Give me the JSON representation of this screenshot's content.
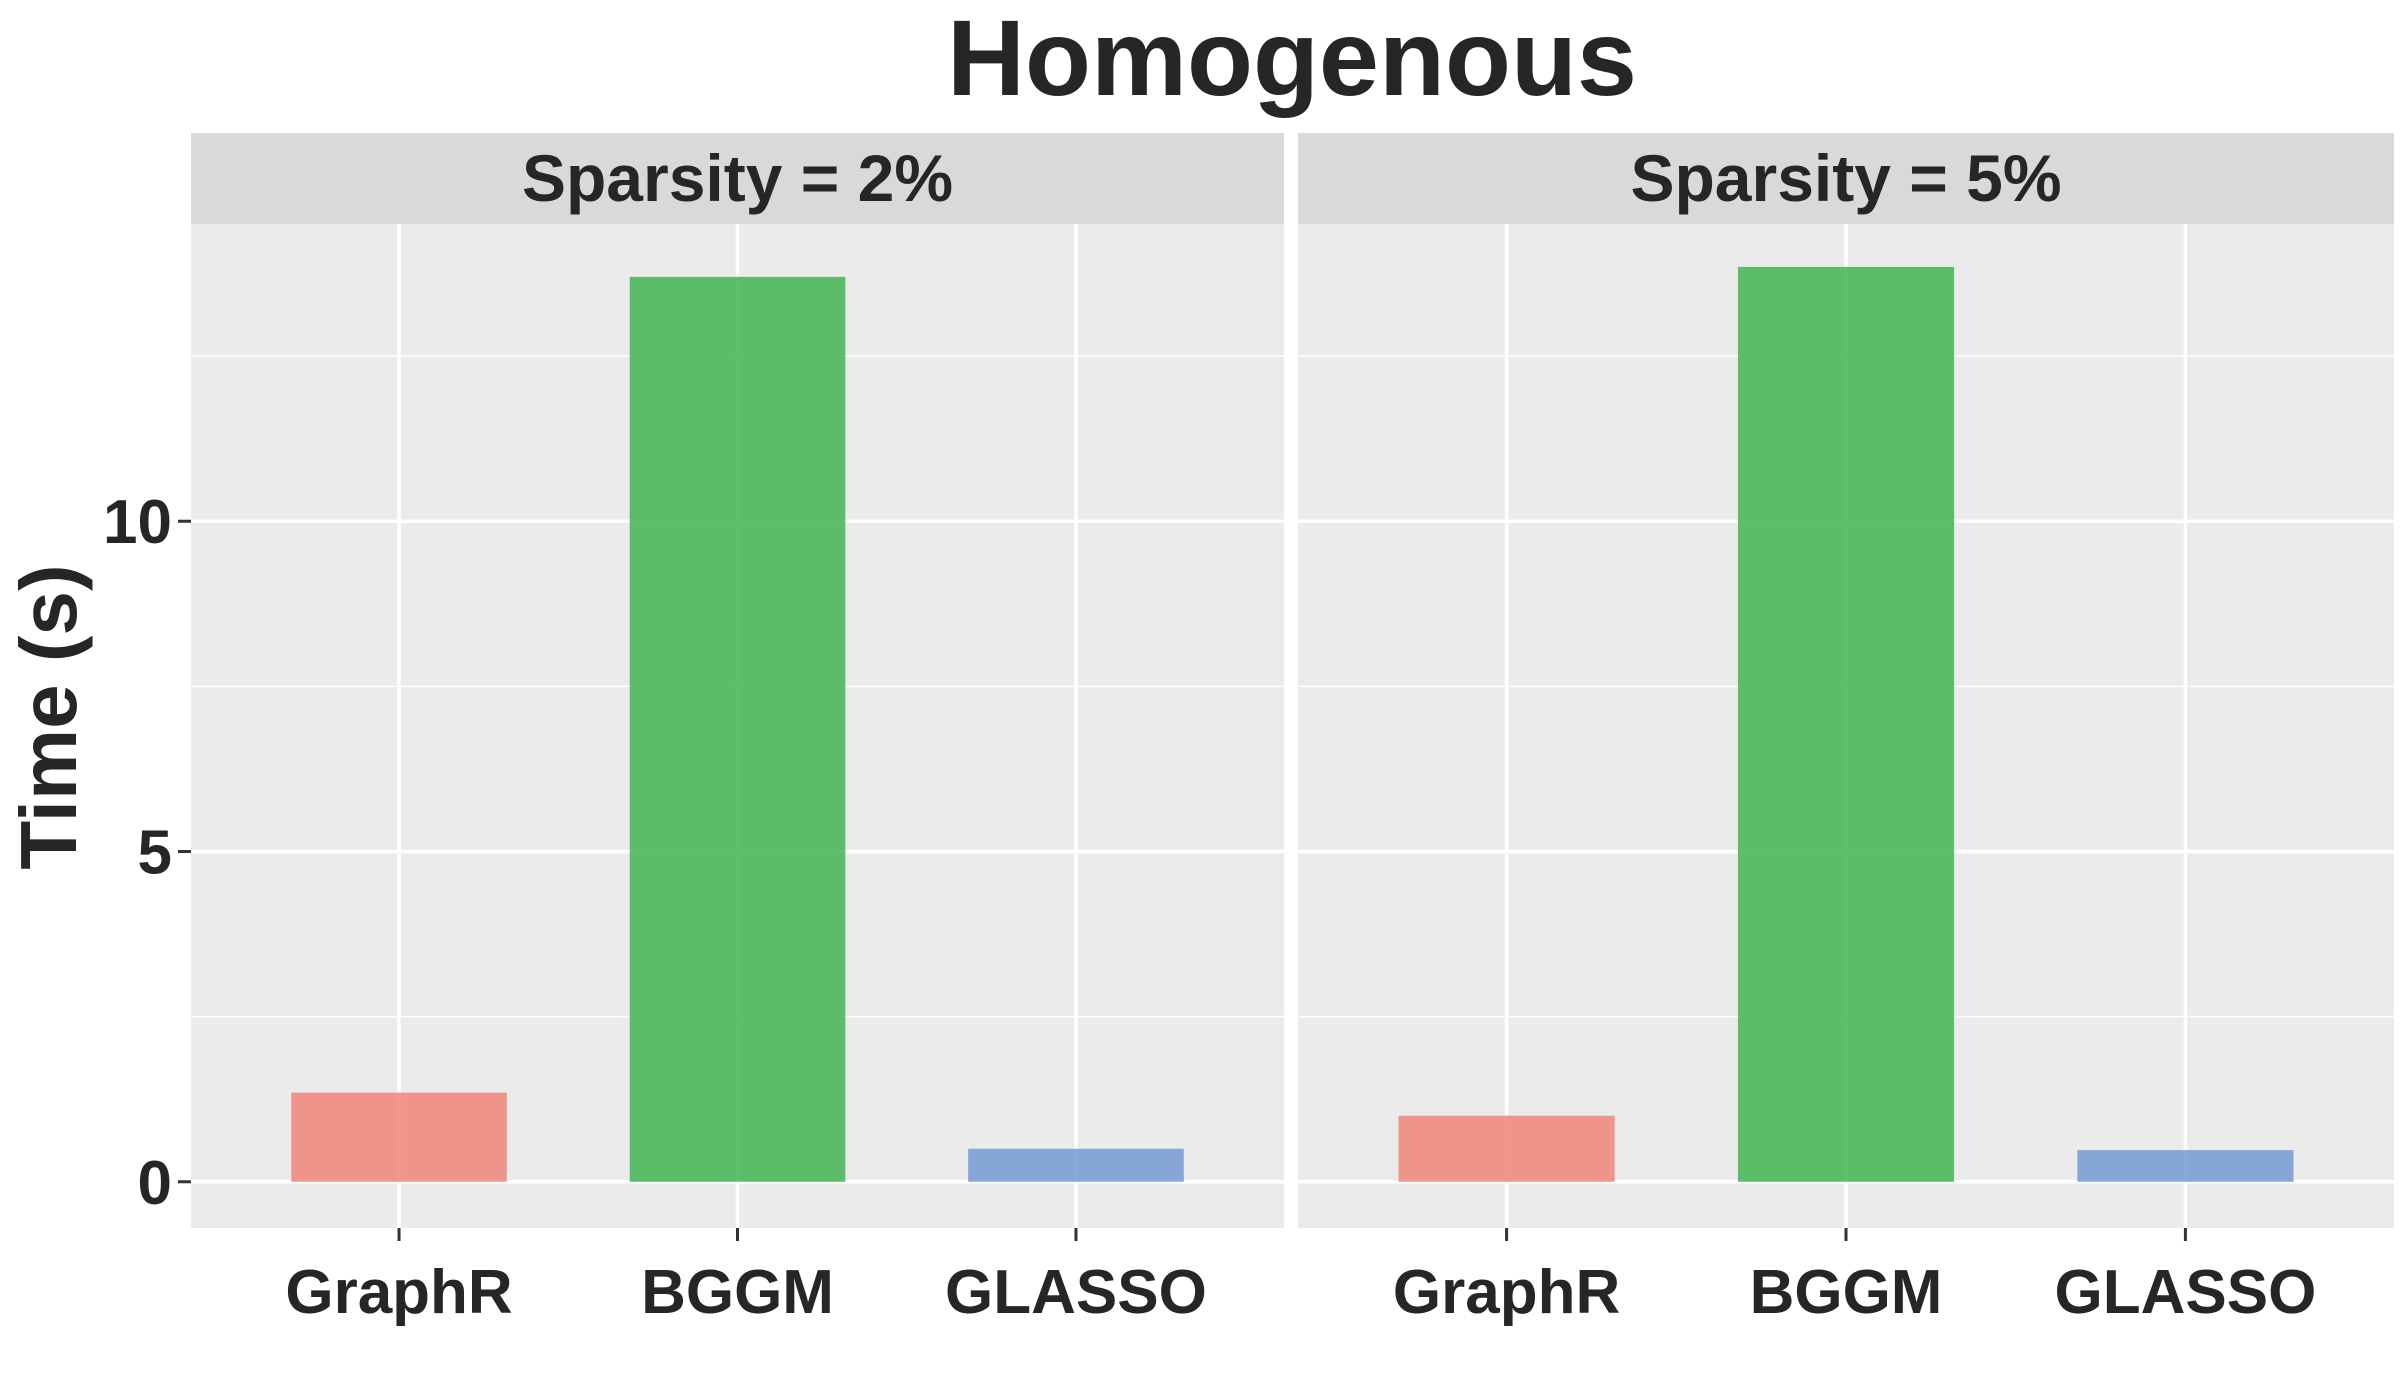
{
  "chart_data": {
    "type": "bar",
    "title": "Homogenous",
    "xlabel": "",
    "ylabel": "Time (s)",
    "ylim": [
      -0.7,
      14.5
    ],
    "yticks": [
      0,
      5,
      10
    ],
    "grid": true,
    "legend": "none",
    "categories": [
      "GraphR",
      "BGGM",
      "GLASSO"
    ],
    "colors": {
      "GraphR": "#F08B80",
      "BGGM": "#4DB85B",
      "GLASSO": "#7B9ED6"
    },
    "colors_notes": "bar fill colors per method",
    "panel_background": "#EBEBEB",
    "strip_background": "#D9D9D9",
    "panels": [
      {
        "label": "Sparsity = 2%",
        "values": [
          1.35,
          13.7,
          0.5
        ]
      },
      {
        "label": "Sparsity = 5%",
        "values": [
          1.0,
          13.85,
          0.48
        ]
      }
    ]
  }
}
